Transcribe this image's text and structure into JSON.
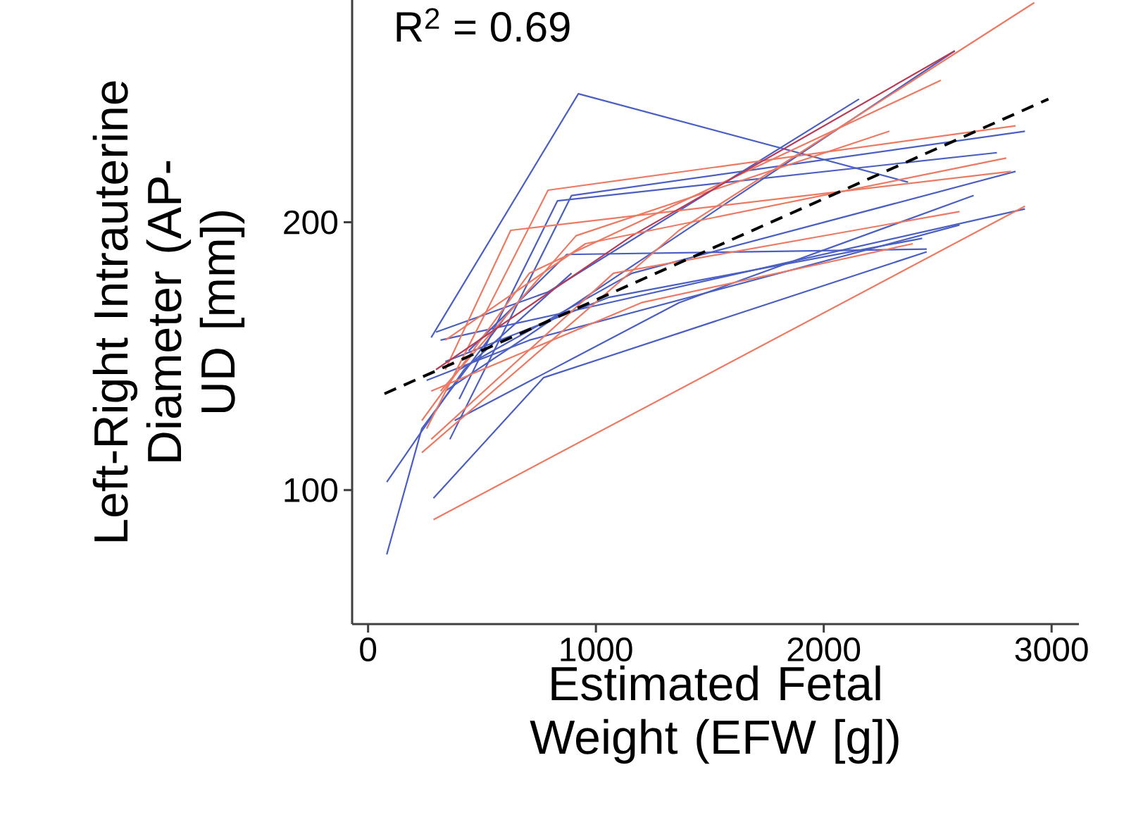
{
  "chart_data": {
    "type": "line",
    "xlabel": "Estimated Fetal Weight (EFW [g])",
    "ylabel": "Left-Right Intrauterine Diameter (AP-UD [mm])",
    "annotations": [
      "R$^{2}$ = 0.69"
    ],
    "xlim": [
      -70,
      3120
    ],
    "ylim": [
      50,
      283
    ],
    "xticks": [
      0,
      1000,
      2000,
      3000
    ],
    "yticks": [
      100,
      200
    ],
    "grid": false,
    "marker": "none",
    "line_style": "solid",
    "series": [
      {
        "color": "#4a5fc1",
        "x": [
          82,
          236,
          605
        ],
        "values": [
          76,
          123,
          165
        ]
      },
      {
        "color": "#4a5fc1",
        "x": [
          82,
          421,
          893
        ],
        "values": [
          103,
          145,
          181
        ]
      },
      {
        "color": "#4a5fc1",
        "x": [
          277,
          923,
          2370
        ],
        "values": [
          157,
          248,
          215
        ]
      },
      {
        "color": "#4a5fc1",
        "x": [
          287,
          770,
          2452
        ],
        "values": [
          97,
          142,
          189
        ]
      },
      {
        "color": "#4a5fc1",
        "x": [
          339,
          1077,
          2575
        ],
        "values": [
          137,
          179,
          264
        ]
      },
      {
        "color": "#4a5fc1",
        "x": [
          298,
          790,
          2155
        ],
        "values": [
          159,
          174,
          246
        ]
      },
      {
        "color": "#4a5fc1",
        "x": [
          359,
          893,
          2883
        ],
        "values": [
          119,
          210,
          234
        ]
      },
      {
        "color": "#4a5fc1",
        "x": [
          400,
          1159,
          2842
        ],
        "values": [
          145,
          181,
          219
        ]
      },
      {
        "color": "#4a5fc1",
        "x": [
          380,
          1365,
          2658
        ],
        "values": [
          126,
          170,
          210
        ]
      },
      {
        "color": "#4a5fc1",
        "x": [
          339,
          1057,
          2432
        ],
        "values": [
          148,
          172,
          194
        ]
      },
      {
        "color": "#4a5fc1",
        "x": [
          318,
          954,
          2883
        ],
        "values": [
          156,
          168,
          205
        ]
      },
      {
        "color": "#4a5fc1",
        "x": [
          400,
          831,
          2760
        ],
        "values": [
          134,
          208,
          226
        ]
      },
      {
        "color": "#4a5fc1",
        "x": [
          257,
          708,
          2596
        ],
        "values": [
          141,
          156,
          199
        ]
      },
      {
        "color": "#4a5fc1",
        "x": [
          441,
          872,
          2452
        ],
        "values": [
          152,
          188,
          190
        ]
      },
      {
        "color": "#ec7a63",
        "x": [
          287,
          2883
        ],
        "values": [
          89,
          206
        ]
      },
      {
        "color": "#ec7a63",
        "x": [
          236,
          1365,
          2924
        ],
        "values": [
          114,
          197,
          282
        ]
      },
      {
        "color": "#ec7a63",
        "x": [
          257,
          790,
          2842
        ],
        "values": [
          123,
          212,
          236
        ]
      },
      {
        "color": "#ec7a63",
        "x": [
          236,
          708,
          2514
        ],
        "values": [
          126,
          181,
          253
        ]
      },
      {
        "color": "#ec7a63",
        "x": [
          318,
          913,
          2288
        ],
        "values": [
          137,
          195,
          234
        ]
      },
      {
        "color": "#ec7a63",
        "x": [
          277,
          1077,
          2596
        ],
        "values": [
          119,
          181,
          204
        ]
      },
      {
        "color": "#ec7a63",
        "x": [
          339,
          626,
          2822
        ],
        "values": [
          145,
          197,
          219
        ]
      },
      {
        "color": "#ec7a63",
        "x": [
          277,
          1200,
          2391
        ],
        "values": [
          137,
          170,
          192
        ]
      },
      {
        "color": "#b83a55",
        "x": [
          298,
          1159,
          2575
        ],
        "values": [
          145,
          195,
          264
        ]
      },
      {
        "color": "#ec7a63",
        "x": [
          339,
          954,
          2801
        ],
        "values": [
          156,
          192,
          224
        ]
      },
      {
        "color": "#000000",
        "line_style": "dashed",
        "x": [
          72,
          2986
        ],
        "values": [
          136,
          246
        ]
      }
    ]
  }
}
